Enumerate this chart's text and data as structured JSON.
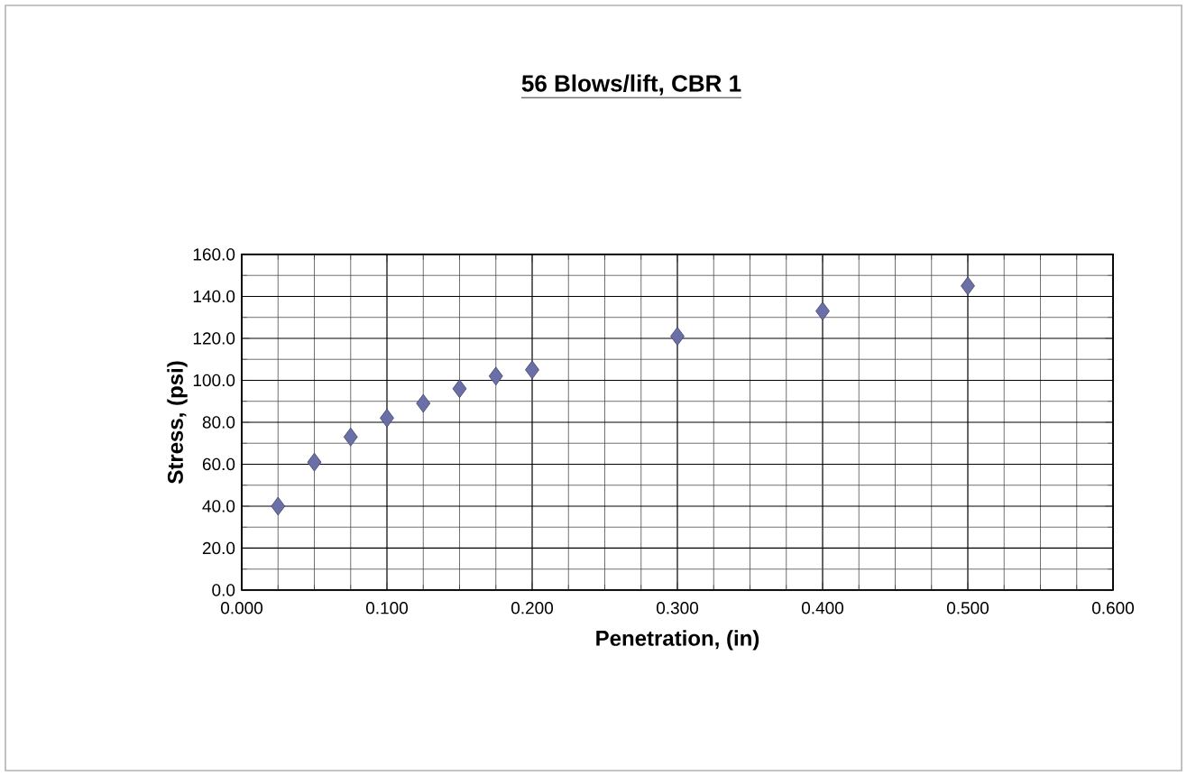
{
  "chart_data": {
    "type": "scatter",
    "title": "56 Blows/lift, CBR 1",
    "xlabel": "Penetration, (in)",
    "ylabel": "Stress, (psi)",
    "x": [
      0.025,
      0.05,
      0.075,
      0.1,
      0.125,
      0.15,
      0.175,
      0.2,
      0.3,
      0.4,
      0.5
    ],
    "series": [
      {
        "color": "#6b6fa8",
        "values": [
          40,
          61,
          73,
          82,
          89,
          96,
          102,
          105,
          121,
          133,
          145
        ]
      }
    ],
    "xlim": [
      0,
      0.6
    ],
    "ylim": [
      0,
      160
    ],
    "xticks": [
      {
        "value": 0,
        "label": "0.000"
      },
      {
        "value": 0.1,
        "label": "0.100"
      },
      {
        "value": 0.2,
        "label": "0.200"
      },
      {
        "value": 0.3,
        "label": "0.300"
      },
      {
        "value": 0.4,
        "label": "0.400"
      },
      {
        "value": 0.5,
        "label": "0.500"
      },
      {
        "value": 0.6,
        "label": "0.600"
      }
    ],
    "yticks": [
      {
        "value": 0,
        "label": "0.0"
      },
      {
        "value": 20,
        "label": "20.0"
      },
      {
        "value": 40,
        "label": "40.0"
      },
      {
        "value": 60,
        "label": "60.0"
      },
      {
        "value": 80,
        "label": "80.0"
      },
      {
        "value": 100,
        "label": "100.0"
      },
      {
        "value": 120,
        "label": "120.0"
      },
      {
        "value": 140,
        "label": "140.0"
      },
      {
        "value": 160,
        "label": "160.0"
      }
    ],
    "grid": true,
    "marker": "diamond"
  }
}
